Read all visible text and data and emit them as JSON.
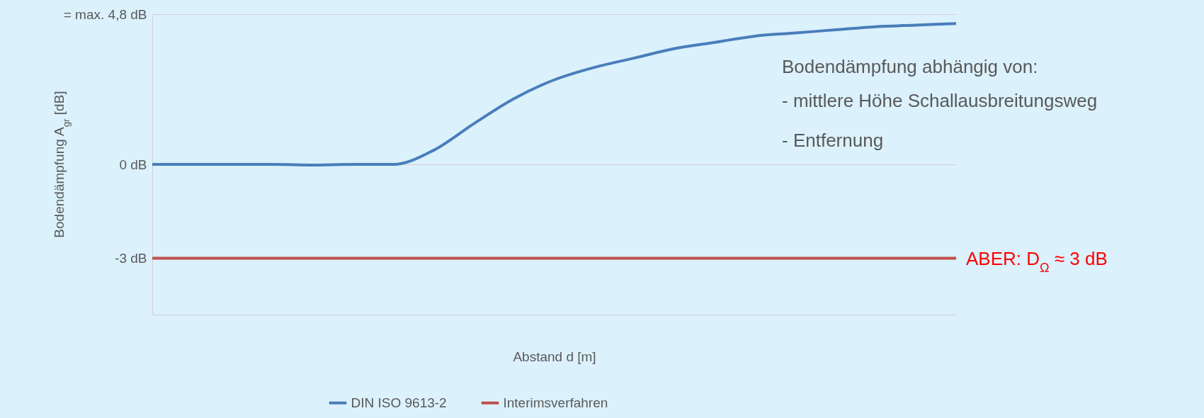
{
  "chart_data": {
    "type": "line",
    "xlabel": "Abstand d [m]",
    "ylabel": "Bodendämpfung A$_{gr}$ [dB]",
    "categories": [
      null,
      null,
      null,
      null,
      null,
      null,
      null,
      null,
      null,
      null,
      null,
      null,
      null,
      null,
      null,
      null,
      null,
      null,
      null,
      null,
      null
    ],
    "series": [
      {
        "name": "DIN ISO 9613-2",
        "color": "#4a7ebb",
        "values": [
          0,
          0,
          0,
          0,
          -0.02,
          0,
          0,
          0.45,
          1.3,
          2.1,
          2.7,
          3.1,
          3.4,
          3.7,
          3.9,
          4.1,
          4.2,
          4.3,
          4.4,
          4.45,
          4.5
        ]
      },
      {
        "name": "Interimsverfahren",
        "color": "#c0504d",
        "values": [
          -3,
          -3,
          -3,
          -3,
          -3,
          -3,
          -3,
          -3,
          -3,
          -3,
          -3,
          -3,
          -3,
          -3,
          -3,
          -3,
          -3,
          -3,
          -3,
          -3,
          -3
        ]
      }
    ],
    "ylim": [
      -4.8,
      4.8
    ],
    "yticks": [
      {
        "value": -3,
        "label": "-3 dB"
      },
      {
        "value": 0,
        "label": "0 dB"
      },
      {
        "value": 4.8,
        "label": "= max. 4,8 dB"
      }
    ],
    "grid": "y",
    "legend": "bottom",
    "annotations": [
      "Bodendämpfung abhängig von:",
      "- mittlere Höhe Schallausbreitungsweg",
      "- Entfernung",
      "ABER: D$_{Ω}$ ≈ 3 dB"
    ]
  }
}
